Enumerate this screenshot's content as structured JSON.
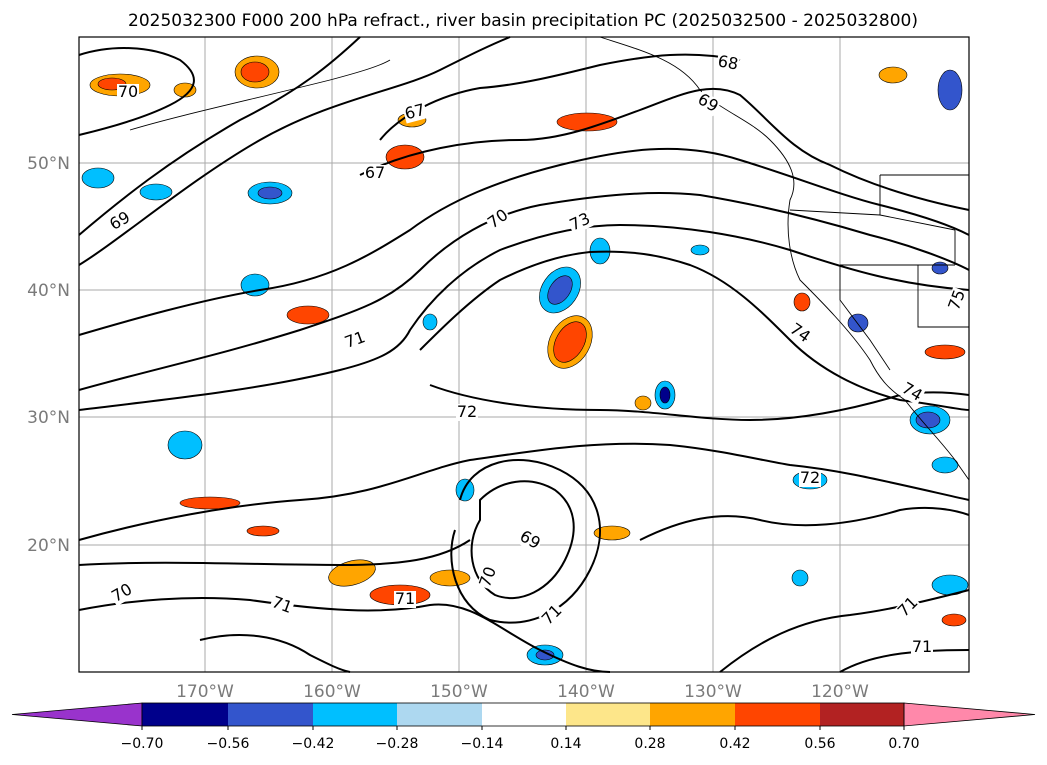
{
  "title": "2025032300 F000 200 hPa refract., river basin precipitation PC (2025032500 - 2025032800)",
  "map": {
    "lat_labels": [
      "50°N",
      "40°N",
      "30°N",
      "20°N"
    ],
    "lon_labels": [
      "170°W",
      "160°W",
      "150°W",
      "140°W",
      "130°W",
      "120°W"
    ],
    "grid": true,
    "contour_labels": [
      "70",
      "69",
      "67",
      "67",
      "68",
      "69",
      "70",
      "73",
      "71",
      "72",
      "74",
      "74",
      "75",
      "72",
      "69",
      "70",
      "70",
      "71",
      "71",
      "71",
      "71",
      "71"
    ]
  },
  "colorbar": {
    "tick_labels": [
      "−0.70",
      "−0.56",
      "−0.42",
      "−0.28",
      "−0.14",
      "0.14",
      "0.28",
      "0.42",
      "0.56",
      "0.70"
    ],
    "colors": [
      "#9933cc",
      "#00008b",
      "#3355cc",
      "#00bfff",
      "#add8f0",
      "#ffffff",
      "#fde68a",
      "#ffa500",
      "#ff4500",
      "#b22222",
      "#ff88aa"
    ],
    "extend": "both"
  }
}
